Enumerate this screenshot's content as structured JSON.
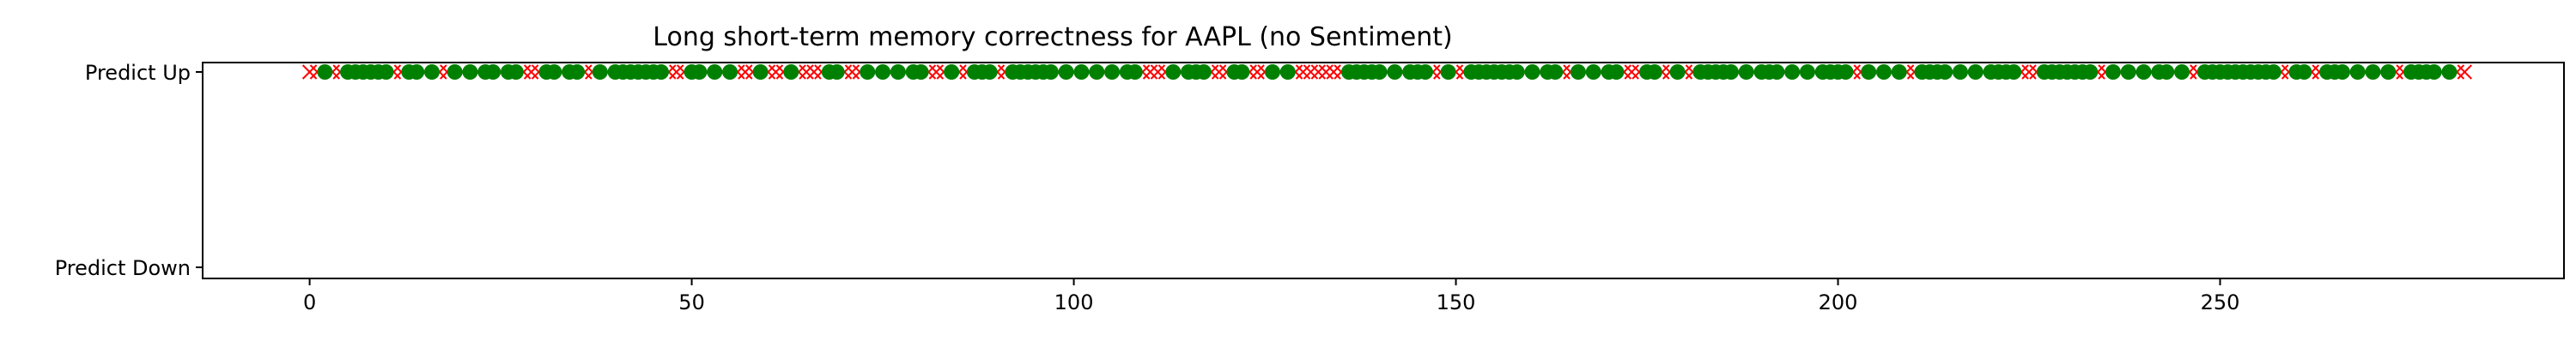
{
  "chart_data": {
    "type": "scatter",
    "title": "Long short-term memory correctness for AAPL (no Sentiment)",
    "xlabel": "",
    "ylabel": "",
    "xlim": [
      -14,
      295
    ],
    "y_categories": [
      "Predict Down",
      "Predict Up"
    ],
    "x_ticks": [
      0,
      50,
      100,
      150,
      200,
      250
    ],
    "grid": false,
    "legend": "none",
    "series": [
      {
        "marker": "circle",
        "color": "#008000",
        "y": "Predict Up",
        "x": [
          2,
          5,
          6,
          7,
          8,
          9,
          10,
          13,
          14,
          16,
          19,
          21,
          23,
          24,
          26,
          27,
          31,
          32,
          34,
          35,
          38,
          40,
          41,
          42,
          43,
          44,
          45,
          46,
          50,
          51,
          53,
          55,
          59,
          63,
          68,
          69,
          73,
          75,
          77,
          79,
          80,
          84,
          87,
          88,
          89,
          92,
          93,
          94,
          95,
          96,
          97,
          99,
          101,
          103,
          105,
          107,
          108,
          113,
          115,
          116,
          117,
          121,
          122,
          126,
          128,
          136,
          137,
          138,
          139,
          140,
          142,
          144,
          145,
          146,
          149,
          152,
          153,
          154,
          155,
          156,
          157,
          158,
          160,
          162,
          163,
          166,
          168,
          170,
          171,
          175,
          176,
          179,
          182,
          183,
          184,
          185,
          186,
          188,
          190,
          191,
          192,
          194,
          196,
          198,
          199,
          200,
          201,
          204,
          206,
          208,
          211,
          212,
          213,
          214,
          216,
          218,
          220,
          221,
          222,
          223,
          227,
          228,
          229,
          230,
          231,
          232,
          233,
          236,
          238,
          240,
          242,
          243,
          245,
          248,
          249,
          250,
          251,
          252,
          253,
          254,
          255,
          256,
          257,
          260,
          261,
          264,
          265,
          266,
          268,
          270,
          272,
          275,
          276,
          277,
          278,
          280
        ]
      },
      {
        "marker": "x",
        "color": "#ff0000",
        "y": "Predict Up",
        "x": [
          0,
          1,
          3,
          4,
          11,
          12,
          15,
          17,
          18,
          20,
          22,
          25,
          28,
          29,
          30,
          33,
          36,
          37,
          39,
          47,
          48,
          49,
          52,
          54,
          56,
          57,
          58,
          60,
          61,
          62,
          64,
          65,
          66,
          67,
          70,
          71,
          72,
          74,
          76,
          78,
          81,
          82,
          83,
          85,
          86,
          90,
          91,
          98,
          100,
          102,
          104,
          106,
          109,
          110,
          111,
          112,
          114,
          118,
          119,
          120,
          123,
          124,
          125,
          127,
          129,
          130,
          131,
          132,
          133,
          134,
          135,
          141,
          143,
          147,
          148,
          150,
          151,
          159,
          161,
          164,
          165,
          167,
          169,
          172,
          173,
          174,
          177,
          178,
          180,
          181,
          187,
          189,
          193,
          195,
          197,
          202,
          203,
          205,
          207,
          209,
          210,
          215,
          217,
          219,
          224,
          225,
          226,
          234,
          235,
          237,
          239,
          241,
          244,
          246,
          247,
          258,
          259,
          262,
          263,
          267,
          269,
          271,
          273,
          274,
          279,
          281,
          282
        ]
      }
    ]
  }
}
